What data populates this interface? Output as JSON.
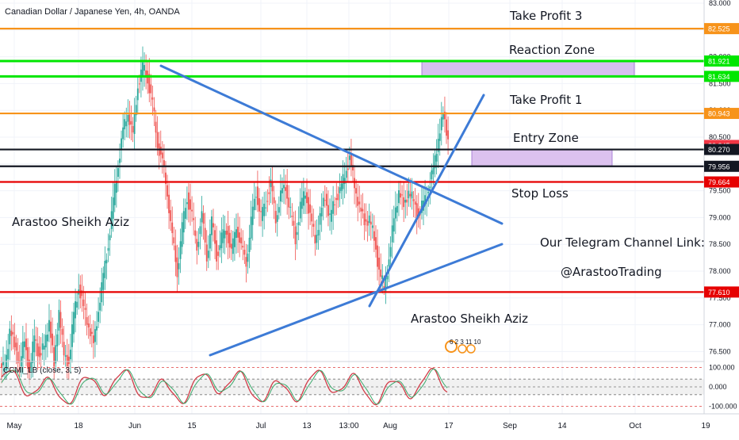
{
  "header": {
    "title": "Canadian Dollar / Japanese Yen, 4h, OANDA"
  },
  "price_axis": {
    "labels": [
      "83.000",
      "82.000",
      "81.500",
      "81.000",
      "80.500",
      "80.000",
      "79.500",
      "79.000",
      "78.500",
      "78.000",
      "77.500",
      "77.000",
      "76.500"
    ],
    "tags": [
      {
        "text": "82.525",
        "color": "#f7931a",
        "price": 82.525
      },
      {
        "text": "81.921",
        "color": "#00e600",
        "price": 81.921
      },
      {
        "text": "81.634",
        "color": "#00e600",
        "price": 81.634
      },
      {
        "text": "80.943",
        "color": "#f7931a",
        "price": 80.943
      },
      {
        "text": "80.345",
        "color": "#f23645",
        "price": 80.345
      },
      {
        "text": "80.270",
        "color": "#131722",
        "price": 80.27
      },
      {
        "text": "79.956",
        "color": "#131722",
        "price": 79.956
      },
      {
        "text": "79.664",
        "color": "#e60000",
        "price": 79.664
      },
      {
        "text": "77.610",
        "color": "#e60000",
        "price": 77.61
      }
    ]
  },
  "time_axis": {
    "labels": [
      "May",
      "18",
      "Jun",
      "15",
      "Jul",
      "13",
      "13:00",
      "Aug",
      "17",
      "Sep",
      "14",
      "Oct",
      "19"
    ]
  },
  "annotations": {
    "take_profit_3": "Take Profit 3",
    "reaction_zone": "Reaction Zone",
    "take_profit_1": "Take Profit 1",
    "entry_zone": "Entry Zone",
    "stop_loss": "Stop Loss",
    "author_left": "Arastoo Sheikh Aziz",
    "author_bottom": "Arastoo Sheikh Aziz",
    "telegram_title": "Our Telegram Channel Link:",
    "telegram_handle": "@ArastooTrading",
    "logo_text": "6 2 3 11 10"
  },
  "indicator": {
    "label": "CCMI_LB (close, 3, 5)",
    "axis_labels": [
      "100.000",
      "0.000",
      "-100.000"
    ]
  },
  "chart_data": {
    "type": "line",
    "title": "Canadian Dollar / Japanese Yen, 4h, OANDA",
    "price_range": [
      76.25,
      83.1
    ],
    "x_ticks": [
      "May",
      "18",
      "Jun",
      "15",
      "Jul",
      "13",
      "13:00",
      "Aug",
      "17",
      "Sep",
      "14",
      "Oct",
      "19"
    ],
    "horizontal_levels": [
      {
        "name": "Take Profit 3",
        "price": 82.525,
        "color": "#f7931a"
      },
      {
        "name": "Reaction Zone",
        "price": 81.921,
        "color": "#00e600"
      },
      {
        "name": "Reaction Zone",
        "price": 81.634,
        "color": "#00e600"
      },
      {
        "name": "Take Profit 1",
        "price": 80.943,
        "color": "#f7931a"
      },
      {
        "name": "Entry Zone",
        "price": 80.27,
        "color": "#131722"
      },
      {
        "name": "Entry Zone",
        "price": 79.956,
        "color": "#131722"
      },
      {
        "name": "Stop Loss",
        "price": 79.664,
        "color": "#e60000"
      },
      {
        "name": "",
        "price": 77.61,
        "color": "#e60000"
      }
    ],
    "zones": [
      {
        "name": "Reaction Zone",
        "from": 81.634,
        "to": 81.921,
        "color": "#d6bff0"
      },
      {
        "name": "Entry Zone",
        "from": 79.956,
        "to": 80.27,
        "color": "#dcc2ef"
      }
    ],
    "price_path": [
      76.2,
      76.9,
      76.6,
      76.3,
      76.7,
      76.1,
      76.8,
      76.4,
      76.6,
      77.1,
      76.2,
      77.3,
      76.4,
      76.3,
      77.2,
      77.7,
      77.3,
      77.0,
      76.6,
      77.3,
      77.9,
      78.5,
      79.3,
      80.0,
      80.6,
      81.0,
      80.5,
      81.5,
      81.8,
      81.6,
      81.1,
      80.4,
      80.0,
      79.5,
      78.6,
      78.0,
      78.8,
      79.4,
      79.0,
      78.5,
      79.0,
      78.3,
      78.9,
      78.3,
      78.6,
      78.8,
      78.3,
      78.9,
      78.4,
      78.2,
      78.9,
      79.5,
      79.0,
      79.3,
      79.6,
      79.0,
      79.4,
      79.6,
      79.1,
      78.6,
      79.2,
      79.5,
      79.0,
      78.6,
      79.0,
      79.4,
      79.0,
      79.3,
      79.5,
      79.8,
      80.1,
      79.6,
      79.2,
      78.9,
      79.0,
      78.6,
      78.0,
      77.7,
      78.2,
      79.0,
      79.5,
      79.2,
      79.5,
      79.3,
      79.0,
      79.3,
      79.5,
      79.9,
      80.5,
      80.9,
      80.5
    ],
    "trendlines": [
      {
        "name": "descending",
        "from": [
          205,
          83.0
        ],
        "to": [
          633,
          76.9
        ],
        "pixel_ref": false
      },
      {
        "name": "ascending-support",
        "from": [
          465,
          0
        ],
        "to": [
          610,
          0
        ],
        "pixel_ref": false
      }
    ],
    "indicator": {
      "name": "CCMI_LB (close, 3, 5)",
      "range": [
        -100,
        100
      ],
      "levels": [
        100,
        0,
        -100
      ]
    }
  }
}
